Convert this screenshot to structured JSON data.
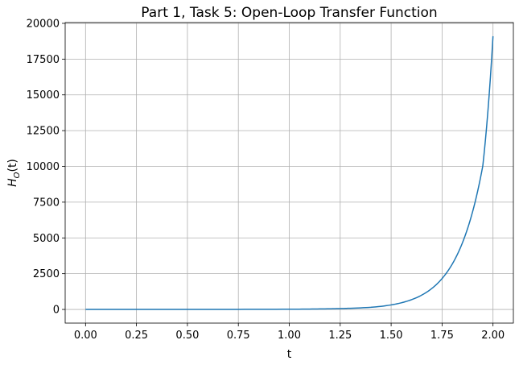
{
  "chart_data": {
    "type": "line",
    "title": "Part 1, Task 5: Open-Loop Transfer Function",
    "xlabel": "t",
    "ylabel": "H_O(t)",
    "ylabel_main": "H",
    "ylabel_sub": "O",
    "ylabel_arg": "(t)",
    "xlim": [
      -0.1,
      2.1
    ],
    "ylim": [
      -955,
      20055
    ],
    "grid": true,
    "x_ticks": [
      0.0,
      0.25,
      0.5,
      0.75,
      1.0,
      1.25,
      1.5,
      1.75,
      2.0
    ],
    "x_tick_labels": [
      "0.00",
      "0.25",
      "0.50",
      "0.75",
      "1.00",
      "1.25",
      "1.50",
      "1.75",
      "2.00"
    ],
    "y_ticks": [
      0,
      2500,
      5000,
      7500,
      10000,
      12500,
      15000,
      17500,
      20000
    ],
    "y_tick_labels": [
      "0",
      "2500",
      "5000",
      "7500",
      "10000",
      "12500",
      "15000",
      "17500",
      "20000"
    ],
    "series": [
      {
        "color": "#1f77b4",
        "x": [
          0.0,
          0.25,
          0.5,
          0.75,
          1.0,
          1.1,
          1.2,
          1.25,
          1.3,
          1.4,
          1.5,
          1.55,
          1.6,
          1.65,
          1.7,
          1.75,
          1.8,
          1.85,
          1.9,
          1.95,
          2.0
        ],
        "y": [
          1,
          2,
          3,
          6,
          15,
          26,
          46,
          62,
          83,
          148,
          316,
          464,
          682,
          1001,
          1470,
          2160,
          3171,
          4657,
          6838,
          10040,
          19100
        ]
      }
    ]
  }
}
